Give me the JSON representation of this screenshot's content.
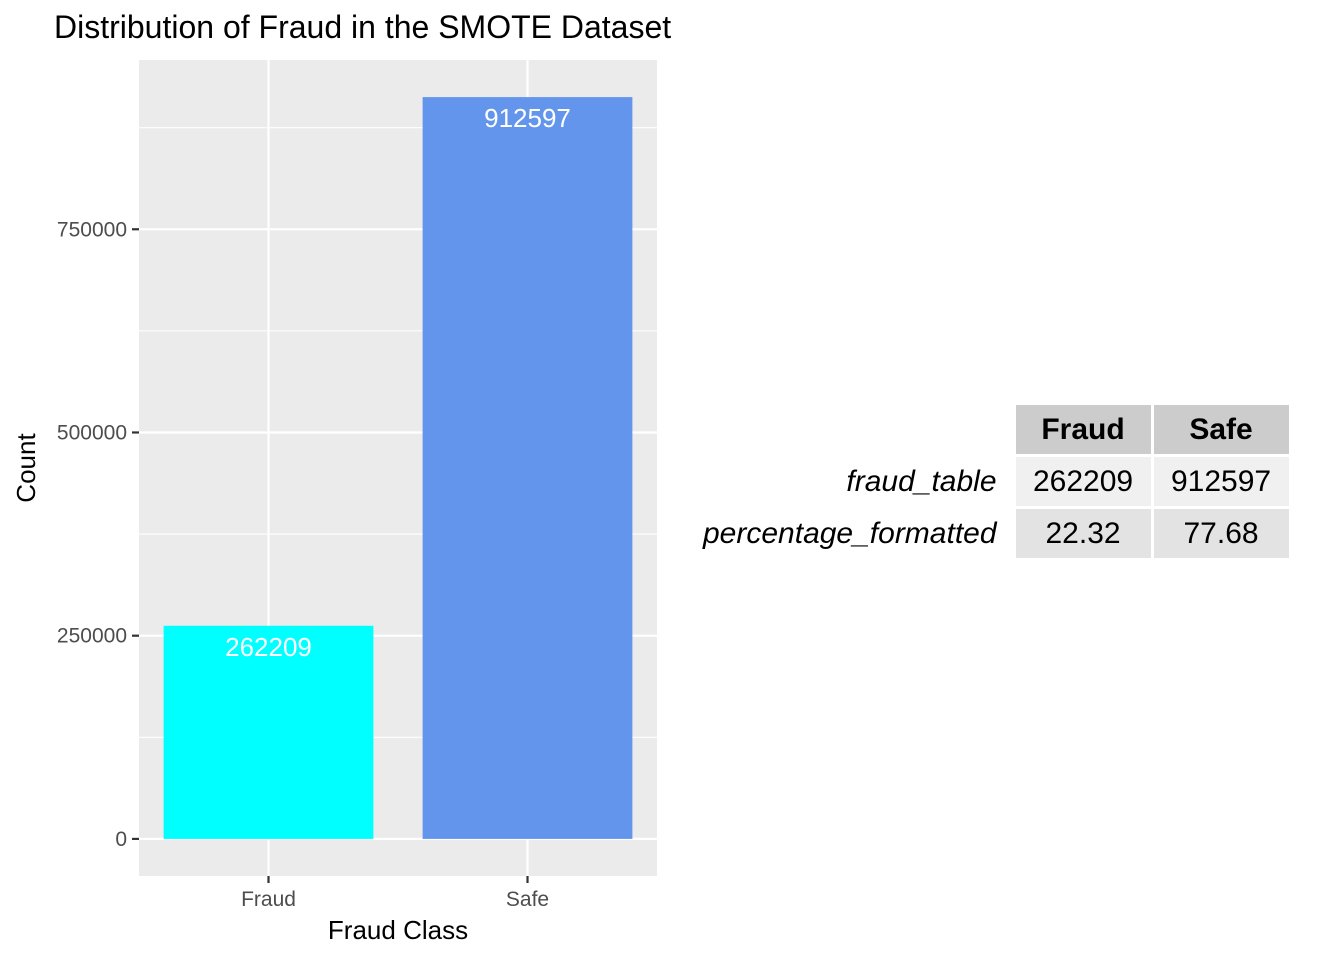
{
  "chart_data": {
    "type": "bar",
    "title": "Distribution of Fraud in the SMOTE Dataset",
    "xlabel": "Fraud Class",
    "ylabel": "Count",
    "categories": [
      "Fraud",
      "Safe"
    ],
    "values": [
      262209,
      912597
    ],
    "value_labels": [
      "262209",
      "912597"
    ],
    "colors": [
      "#00ffff",
      "#6495ed"
    ],
    "ylim": [
      -45630,
      958227
    ],
    "yticks": [
      0,
      250000,
      500000,
      750000
    ],
    "ytick_labels": [
      "0",
      "250000",
      "500000",
      "750000"
    ],
    "panel_background": "#ebebeb",
    "grid": true,
    "legend": "none"
  },
  "summary_table": {
    "columns": [
      "Fraud",
      "Safe"
    ],
    "rows": [
      {
        "label": "fraud_table",
        "cells": [
          "262209",
          "912597"
        ]
      },
      {
        "label": "percentage_formatted",
        "cells": [
          "22.32",
          "77.68"
        ]
      }
    ]
  }
}
